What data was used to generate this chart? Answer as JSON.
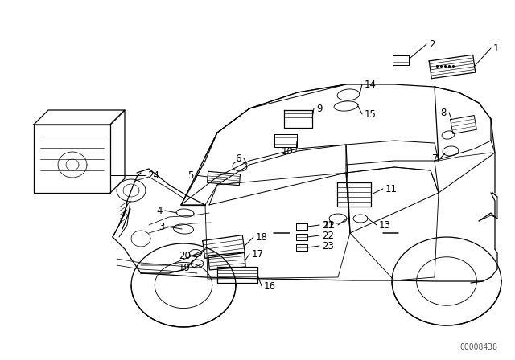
{
  "background_color": "#ffffff",
  "line_color": "#000000",
  "figure_width": 6.4,
  "figure_height": 4.48,
  "dpi": 100,
  "watermark": "00008438",
  "watermark_fontsize": 7
}
